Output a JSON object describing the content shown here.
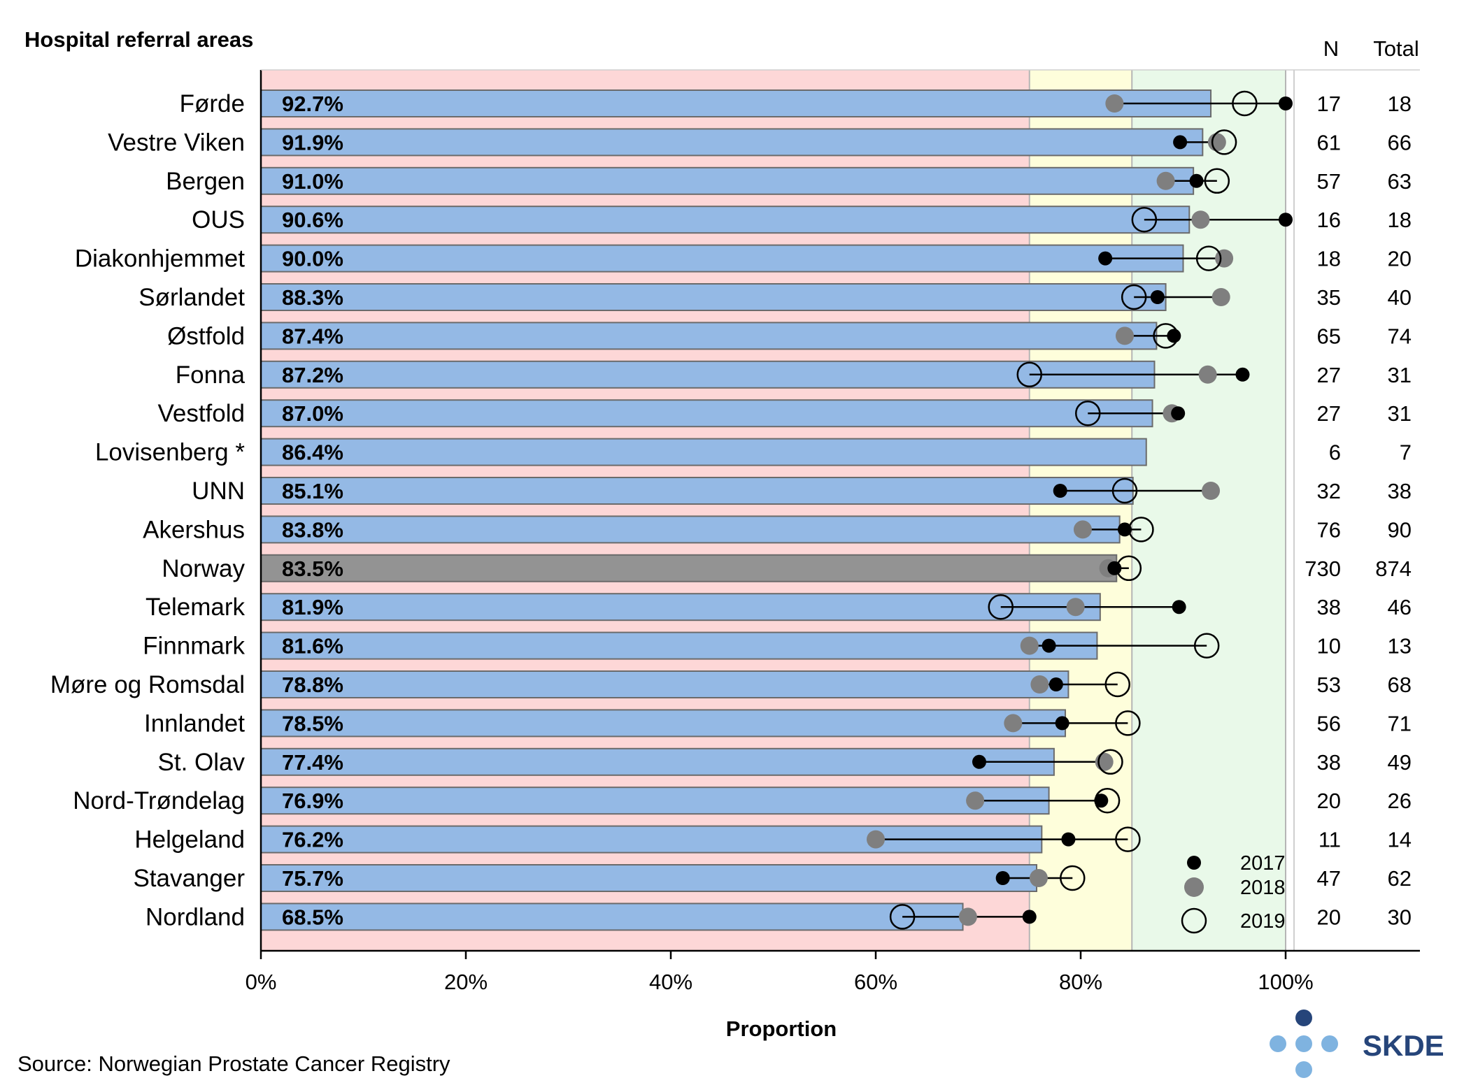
{
  "chart_data": {
    "type": "bar",
    "title": "Hospital referral areas",
    "xlabel": "Proportion",
    "source": "Source: Norwegian Prostate Cancer Registry",
    "logo_text": "SKDE",
    "column_headers": {
      "n": "N",
      "total": "Total"
    },
    "xlim": [
      0,
      1.13
    ],
    "x_ticks": [
      {
        "value": 0,
        "label": "0%"
      },
      {
        "value": 0.2,
        "label": "20%"
      },
      {
        "value": 0.4,
        "label": "40%"
      },
      {
        "value": 0.6,
        "label": "60%"
      },
      {
        "value": 0.8,
        "label": "80%"
      },
      {
        "value": 1.0,
        "label": "100%"
      }
    ],
    "target_zones": [
      {
        "from": 0,
        "to": 0.75,
        "color": "#fdd7d7"
      },
      {
        "from": 0.75,
        "to": 0.85,
        "color": "#fefedb"
      },
      {
        "from": 0.85,
        "to": 1.0,
        "color": "#e9f9e9"
      }
    ],
    "colors": {
      "bar": "#94b9e5",
      "bar_highlight": "#939393",
      "bar_stroke": "#6b6b6b",
      "dot_2017": "#000000",
      "dot_2018": "#7f7f7f",
      "ring_2019": "#000000"
    },
    "legend": [
      {
        "name": "2017",
        "style": "filled-black"
      },
      {
        "name": "2018",
        "style": "filled-grey"
      },
      {
        "name": "2019",
        "style": "open-ring"
      }
    ],
    "legend_position": "bottom-right",
    "rows": [
      {
        "area": "Førde",
        "value": 0.927,
        "label": "92.7%",
        "y2017": 1.0,
        "y2018": 0.833,
        "y2019": 0.96,
        "n": "17",
        "total": "18"
      },
      {
        "area": "Vestre Viken",
        "value": 0.919,
        "label": "91.9%",
        "y2017": 0.897,
        "y2018": 0.933,
        "y2019": 0.94,
        "n": "61",
        "total": "66"
      },
      {
        "area": "Bergen",
        "value": 0.91,
        "label": "91.0%",
        "y2017": 0.913,
        "y2018": 0.883,
        "y2019": 0.933,
        "n": "57",
        "total": "63"
      },
      {
        "area": "OUS",
        "value": 0.906,
        "label": "90.6%",
        "y2017": 1.0,
        "y2018": 0.917,
        "y2019": 0.862,
        "n": "16",
        "total": "18"
      },
      {
        "area": "Diakonhjemmet",
        "value": 0.9,
        "label": "90.0%",
        "y2017": 0.824,
        "y2018": 0.94,
        "y2019": 0.925,
        "n": "18",
        "total": "20"
      },
      {
        "area": "Sørlandet",
        "value": 0.883,
        "label": "88.3%",
        "y2017": 0.875,
        "y2018": 0.937,
        "y2019": 0.852,
        "n": "35",
        "total": "40"
      },
      {
        "area": "Østfold",
        "value": 0.874,
        "label": "87.4%",
        "y2017": 0.891,
        "y2018": 0.843,
        "y2019": 0.883,
        "n": "65",
        "total": "74"
      },
      {
        "area": "Fonna",
        "value": 0.872,
        "label": "87.2%",
        "y2017": 0.958,
        "y2018": 0.924,
        "y2019": 0.75,
        "n": "27",
        "total": "31"
      },
      {
        "area": "Vestfold",
        "value": 0.87,
        "label": "87.0%",
        "y2017": 0.895,
        "y2018": 0.889,
        "y2019": 0.807,
        "n": "27",
        "total": "31"
      },
      {
        "area": "Lovisenberg *",
        "value": 0.864,
        "label": "86.4%",
        "y2017": null,
        "y2018": null,
        "y2019": null,
        "n": "6",
        "total": "7"
      },
      {
        "area": "UNN",
        "value": 0.851,
        "label": "85.1%",
        "y2017": 0.78,
        "y2018": 0.927,
        "y2019": 0.843,
        "n": "32",
        "total": "38"
      },
      {
        "area": "Akershus",
        "value": 0.838,
        "label": "83.8%",
        "y2017": 0.843,
        "y2018": 0.802,
        "y2019": 0.859,
        "n": "76",
        "total": "90"
      },
      {
        "area": "Norway",
        "value": 0.835,
        "label": "83.5%",
        "y2017": 0.833,
        "y2018": 0.827,
        "y2019": 0.847,
        "n": "730",
        "total": "874",
        "highlight": true
      },
      {
        "area": "Telemark",
        "value": 0.819,
        "label": "81.9%",
        "y2017": 0.896,
        "y2018": 0.795,
        "y2019": 0.722,
        "n": "38",
        "total": "46"
      },
      {
        "area": "Finnmark",
        "value": 0.816,
        "label": "81.6%",
        "y2017": 0.769,
        "y2018": 0.75,
        "y2019": 0.923,
        "n": "10",
        "total": "13"
      },
      {
        "area": "Møre og Romsdal",
        "value": 0.788,
        "label": "78.8%",
        "y2017": 0.776,
        "y2018": 0.76,
        "y2019": 0.836,
        "n": "53",
        "total": "68"
      },
      {
        "area": "Innlandet",
        "value": 0.785,
        "label": "78.5%",
        "y2017": 0.782,
        "y2018": 0.734,
        "y2019": 0.846,
        "n": "56",
        "total": "71"
      },
      {
        "area": "St. Olav",
        "value": 0.774,
        "label": "77.4%",
        "y2017": 0.701,
        "y2018": 0.823,
        "y2019": 0.829,
        "n": "38",
        "total": "49"
      },
      {
        "area": "Nord-Trøndelag",
        "value": 0.769,
        "label": "76.9%",
        "y2017": 0.82,
        "y2018": 0.697,
        "y2019": 0.826,
        "n": "20",
        "total": "26"
      },
      {
        "area": "Helgeland",
        "value": 0.762,
        "label": "76.2%",
        "y2017": 0.788,
        "y2018": 0.6,
        "y2019": 0.846,
        "n": "11",
        "total": "14"
      },
      {
        "area": "Stavanger",
        "value": 0.757,
        "label": "75.7%",
        "y2017": 0.724,
        "y2018": 0.759,
        "y2019": 0.792,
        "n": "47",
        "total": "62"
      },
      {
        "area": "Nordland",
        "value": 0.685,
        "label": "68.5%",
        "y2017": 0.75,
        "y2018": 0.69,
        "y2019": 0.626,
        "n": "20",
        "total": "30"
      }
    ]
  }
}
